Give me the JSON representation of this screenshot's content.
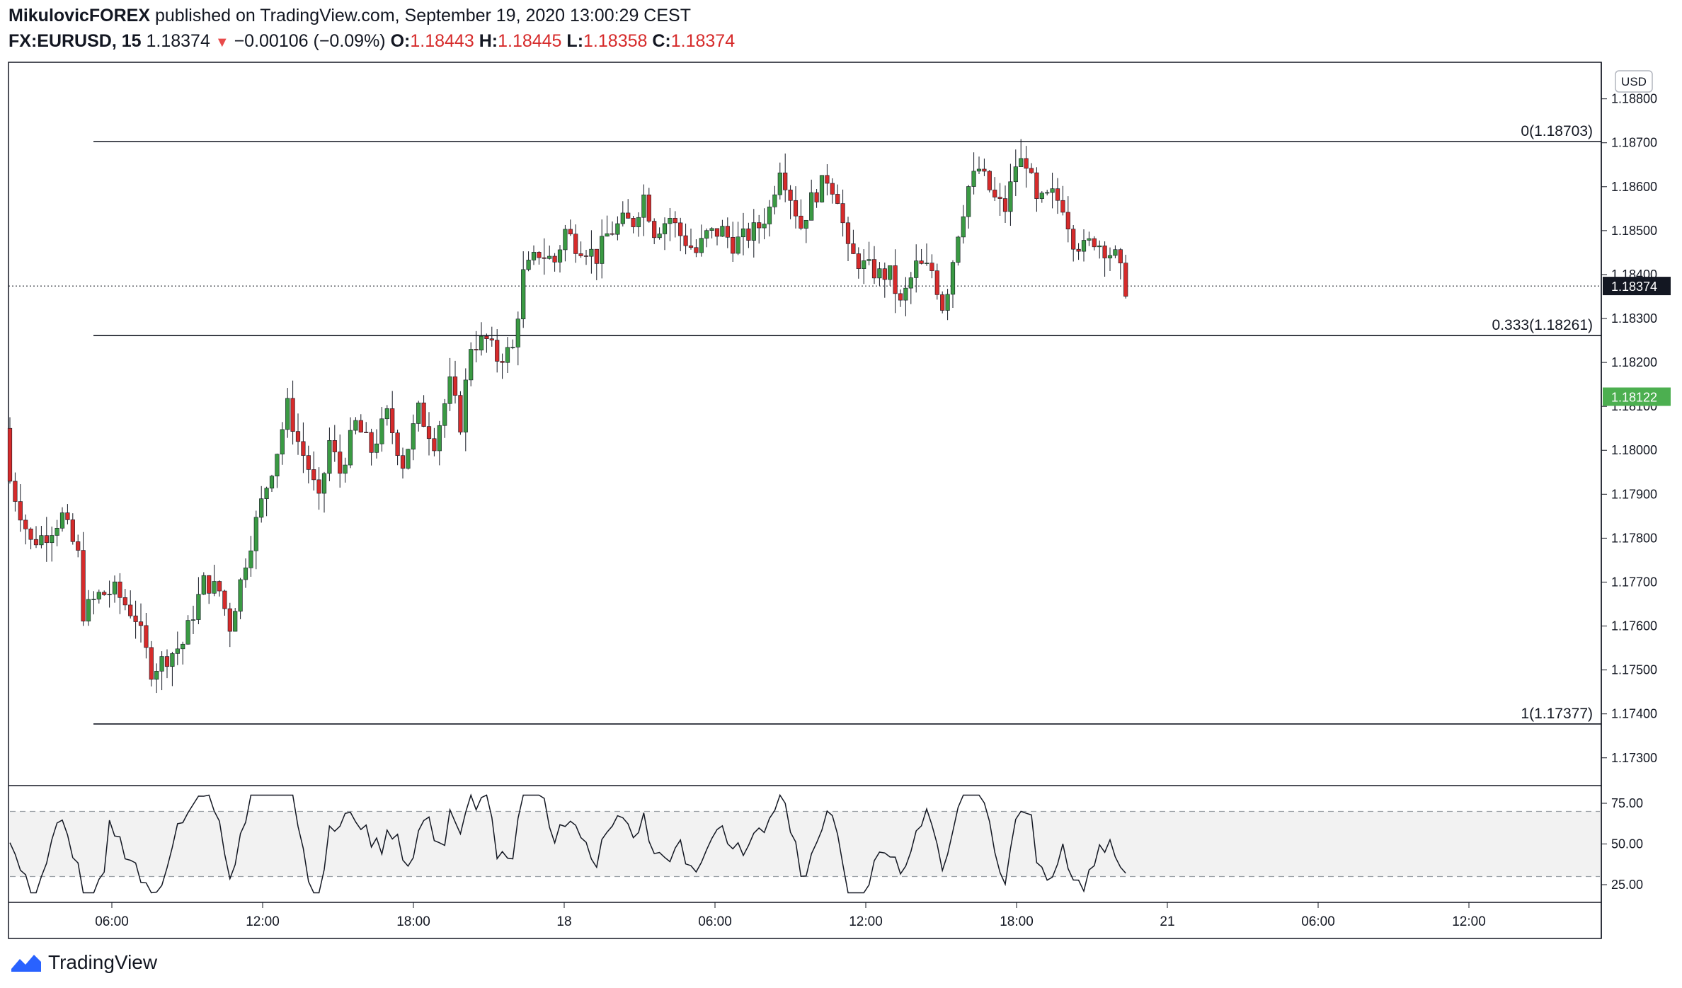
{
  "header": {
    "author": "MikulovicFOREX",
    "published_text": "published on TradingView.com, September 19, 2020 13:00:29 CEST",
    "symbol": "FX:EURUSD, 15",
    "last": "1.18374",
    "change_arrow": "▼",
    "change": "−0.00106 (−0.09%)",
    "o_label": "O:",
    "o_value": "1.18443",
    "h_label": "H:",
    "h_value": "1.18445",
    "l_label": "L:",
    "l_value": "1.18358",
    "c_label": "C:",
    "c_value": "1.18374"
  },
  "footer": {
    "brand": "TradingView"
  },
  "colors": {
    "up": "#3a9a43",
    "down": "#d62b2b",
    "axis": "#131722",
    "rsi_band": "#f2f2f2",
    "last_price_bg": "#131722",
    "green_tag": "#4caf50"
  },
  "chart_data": [
    {
      "type": "candlestick",
      "currency_label": "USD",
      "ylim": [
        1.1724,
        1.1888
      ],
      "y_ticks": [
        "1.17300",
        "1.17400",
        "1.17500",
        "1.17600",
        "1.17700",
        "1.17800",
        "1.17900",
        "1.18000",
        "1.18100",
        "1.18200",
        "1.18300",
        "1.18400",
        "1.18500",
        "1.18600",
        "1.18700",
        "1.18800"
      ],
      "x_ticks": [
        "06:00",
        "12:00",
        "18:00",
        "18",
        "06:00",
        "12:00",
        "18:00",
        "21",
        "06:00",
        "12:00"
      ],
      "price_tags": [
        {
          "label": "1.18374",
          "value": 1.18374,
          "style": "last"
        },
        {
          "label": "1.18122",
          "value": 1.18122,
          "style": "green"
        }
      ],
      "fib_levels": [
        {
          "label": "0(1.18703)",
          "value": 1.18703
        },
        {
          "label": "0.333(1.18261)",
          "value": 1.18261
        },
        {
          "label": "1(1.17377)",
          "value": 1.17377
        }
      ],
      "close_path": [
        [
          0,
          1.1793
        ],
        [
          4,
          1.1779
        ],
        [
          7,
          1.1781
        ],
        [
          10,
          1.1785
        ],
        [
          13,
          1.1776
        ],
        [
          14,
          1.1763
        ],
        [
          17,
          1.1767
        ],
        [
          20,
          1.1768
        ],
        [
          24,
          1.1762
        ],
        [
          27,
          1.175
        ],
        [
          30,
          1.1753
        ],
        [
          33,
          1.1756
        ],
        [
          37,
          1.177
        ],
        [
          40,
          1.1768
        ],
        [
          42,
          1.176
        ],
        [
          45,
          1.1775
        ],
        [
          48,
          1.1788
        ],
        [
          51,
          1.18
        ],
        [
          53,
          1.181
        ],
        [
          55,
          1.1802
        ],
        [
          57,
          1.1796
        ],
        [
          59,
          1.1788
        ],
        [
          61,
          1.1802
        ],
        [
          63,
          1.1795
        ],
        [
          66,
          1.1806
        ],
        [
          69,
          1.18
        ],
        [
          72,
          1.1808
        ],
        [
          75,
          1.1797
        ],
        [
          78,
          1.1809
        ],
        [
          81,
          1.1802
        ],
        [
          84,
          1.1815
        ],
        [
          86,
          1.1806
        ],
        [
          88,
          1.1824
        ],
        [
          91,
          1.1825
        ],
        [
          93,
          1.1821
        ],
        [
          96,
          1.1823
        ],
        [
          98,
          1.184
        ],
        [
          101,
          1.1845
        ],
        [
          104,
          1.1843
        ],
        [
          106,
          1.185
        ],
        [
          108,
          1.1847
        ],
        [
          110,
          1.1846
        ],
        [
          112,
          1.1844
        ],
        [
          114,
          1.1849
        ],
        [
          117,
          1.1852
        ],
        [
          119,
          1.1852
        ],
        [
          121,
          1.1858
        ],
        [
          123,
          1.185
        ],
        [
          126,
          1.1853
        ],
        [
          128,
          1.1849
        ],
        [
          131,
          1.1845
        ],
        [
          133,
          1.1849
        ],
        [
          136,
          1.185
        ],
        [
          138,
          1.1847
        ],
        [
          141,
          1.1849
        ],
        [
          143,
          1.1851
        ],
        [
          145,
          1.1855
        ],
        [
          147,
          1.1865
        ],
        [
          149,
          1.1858
        ],
        [
          151,
          1.1851
        ],
        [
          153,
          1.1857
        ],
        [
          156,
          1.1862
        ],
        [
          158,
          1.1858
        ],
        [
          160,
          1.1845
        ],
        [
          163,
          1.1842
        ],
        [
          166,
          1.184
        ],
        [
          168,
          1.184
        ],
        [
          170,
          1.1833
        ],
        [
          173,
          1.1842
        ],
        [
          176,
          1.1841
        ],
        [
          178,
          1.1833
        ],
        [
          179,
          1.1837
        ],
        [
          181,
          1.185
        ],
        [
          183,
          1.186
        ],
        [
          185,
          1.1864
        ],
        [
          188,
          1.1857
        ],
        [
          190,
          1.1855
        ],
        [
          192,
          1.1865
        ],
        [
          194,
          1.1866
        ],
        [
          196,
          1.1856
        ],
        [
          199,
          1.1858
        ],
        [
          201,
          1.1856
        ],
        [
          203,
          1.1848
        ],
        [
          205,
          1.1846
        ],
        [
          207,
          1.1848
        ],
        [
          209,
          1.1846
        ],
        [
          211,
          1.1844
        ],
        [
          213,
          1.1837
        ]
      ],
      "rsi": {
        "levels": [
          "75.00",
          "50.00",
          "25.00"
        ],
        "ylim": [
          15,
          85
        ],
        "band": [
          30,
          70
        ]
      }
    }
  ]
}
